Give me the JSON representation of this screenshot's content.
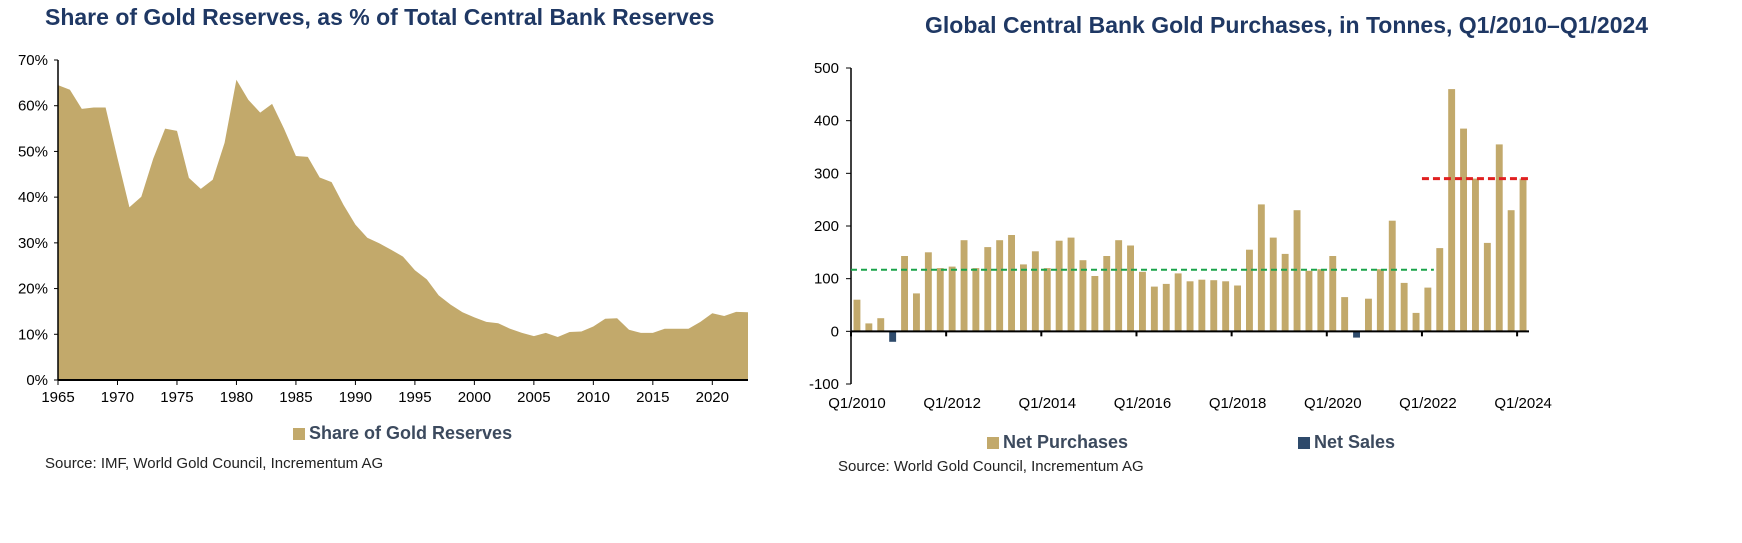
{
  "colors": {
    "gold": "#c2a96b",
    "navy": "#2e4a6b",
    "green_dash": "#1aa34a",
    "red_dash": "#e02020",
    "title": "#1f3864"
  },
  "chart_data": [
    {
      "type": "area",
      "title": "Share of Gold Reserves, as % of Total Central Bank Reserves",
      "xlabel": "",
      "ylabel": "",
      "xlim": [
        1965,
        2023
      ],
      "ylim": [
        0,
        70
      ],
      "x_ticks": [
        "1965",
        "1970",
        "1975",
        "1980",
        "1985",
        "1990",
        "1995",
        "2000",
        "2005",
        "2010",
        "2015",
        "2020"
      ],
      "y_ticks": [
        "0%",
        "10%",
        "20%",
        "30%",
        "40%",
        "50%",
        "60%",
        "70%"
      ],
      "grid": false,
      "legend_position": "bottom",
      "series": [
        {
          "name": "Share of Gold Reserves",
          "x": [
            1965,
            1966,
            1967,
            1968,
            1969,
            1970,
            1971,
            1972,
            1973,
            1974,
            1975,
            1976,
            1977,
            1978,
            1979,
            1980,
            1981,
            1982,
            1983,
            1984,
            1985,
            1986,
            1987,
            1988,
            1989,
            1990,
            1991,
            1992,
            1993,
            1994,
            1995,
            1996,
            1997,
            1998,
            1999,
            2000,
            2001,
            2002,
            2003,
            2004,
            2005,
            2006,
            2007,
            2008,
            2009,
            2010,
            2011,
            2012,
            2013,
            2014,
            2015,
            2016,
            2017,
            2018,
            2019,
            2020,
            2021,
            2022,
            2023
          ],
          "values": [
            64.5,
            63.5,
            59.3,
            59.6,
            59.6,
            48.5,
            37.8,
            40.1,
            48.4,
            55.0,
            54.5,
            44.2,
            41.8,
            43.8,
            51.9,
            65.7,
            61.3,
            58.5,
            60.4,
            55.0,
            49.0,
            48.8,
            44.3,
            43.3,
            38.3,
            34.0,
            31.1,
            29.9,
            28.5,
            27.0,
            24.0,
            22.0,
            18.5,
            16.5,
            14.8,
            13.7,
            12.7,
            12.4,
            11.2,
            10.3,
            9.6,
            10.3,
            9.4,
            10.5,
            10.6,
            11.7,
            13.4,
            13.5,
            11.0,
            10.3,
            10.3,
            11.2,
            11.2,
            11.2,
            12.7,
            14.6,
            14.0,
            14.9,
            14.8
          ]
        }
      ],
      "source": "Source: IMF, World Gold Council, Incrementum AG"
    },
    {
      "type": "bar",
      "title": "Global Central Bank Gold Purchases, in Tonnes, Q1/2010–Q1/2024",
      "xlabel": "",
      "ylabel": "",
      "ylim": [
        -100,
        500
      ],
      "y_ticks": [
        "-100",
        "0",
        "100",
        "200",
        "300",
        "400",
        "500"
      ],
      "x_ticks": [
        "Q1/2010",
        "Q1/2012",
        "Q1/2014",
        "Q1/2016",
        "Q1/2018",
        "Q1/2020",
        "Q1/2022",
        "Q1/2024"
      ],
      "grid": false,
      "legend_position": "bottom",
      "series": [
        {
          "name": "Net Purchases",
          "values": [
            60,
            15,
            25,
            0,
            143,
            72,
            150,
            120,
            123,
            173,
            120,
            160,
            173,
            183,
            127,
            152,
            120,
            172,
            178,
            135,
            105,
            143,
            173,
            163,
            113,
            85,
            90,
            110,
            95,
            98,
            97,
            95,
            87,
            155,
            241,
            178,
            147,
            230,
            115,
            118,
            143,
            65,
            0,
            62,
            118,
            210,
            92,
            35,
            83,
            158,
            460,
            385,
            290,
            168,
            355,
            230,
            290
          ]
        },
        {
          "name": "Net Sales",
          "values": [
            0,
            0,
            0,
            -20,
            0,
            0,
            0,
            0,
            0,
            0,
            0,
            0,
            0,
            0,
            0,
            0,
            0,
            0,
            0,
            0,
            0,
            0,
            0,
            0,
            0,
            0,
            0,
            0,
            0,
            0,
            0,
            0,
            0,
            0,
            0,
            0,
            0,
            0,
            0,
            0,
            0,
            0,
            -12,
            0,
            0,
            0,
            0,
            0,
            0,
            0,
            0,
            0,
            0,
            0,
            0,
            0,
            0
          ]
        }
      ],
      "reference_lines": [
        {
          "color": "green",
          "style": "dashed",
          "value": 117,
          "from_index": 0,
          "to_index": 48
        },
        {
          "color": "red",
          "style": "dashed",
          "value": 290,
          "from_index": 48,
          "to_index": 56
        }
      ],
      "source": "Source: World Gold Council, Incrementum AG"
    }
  ]
}
